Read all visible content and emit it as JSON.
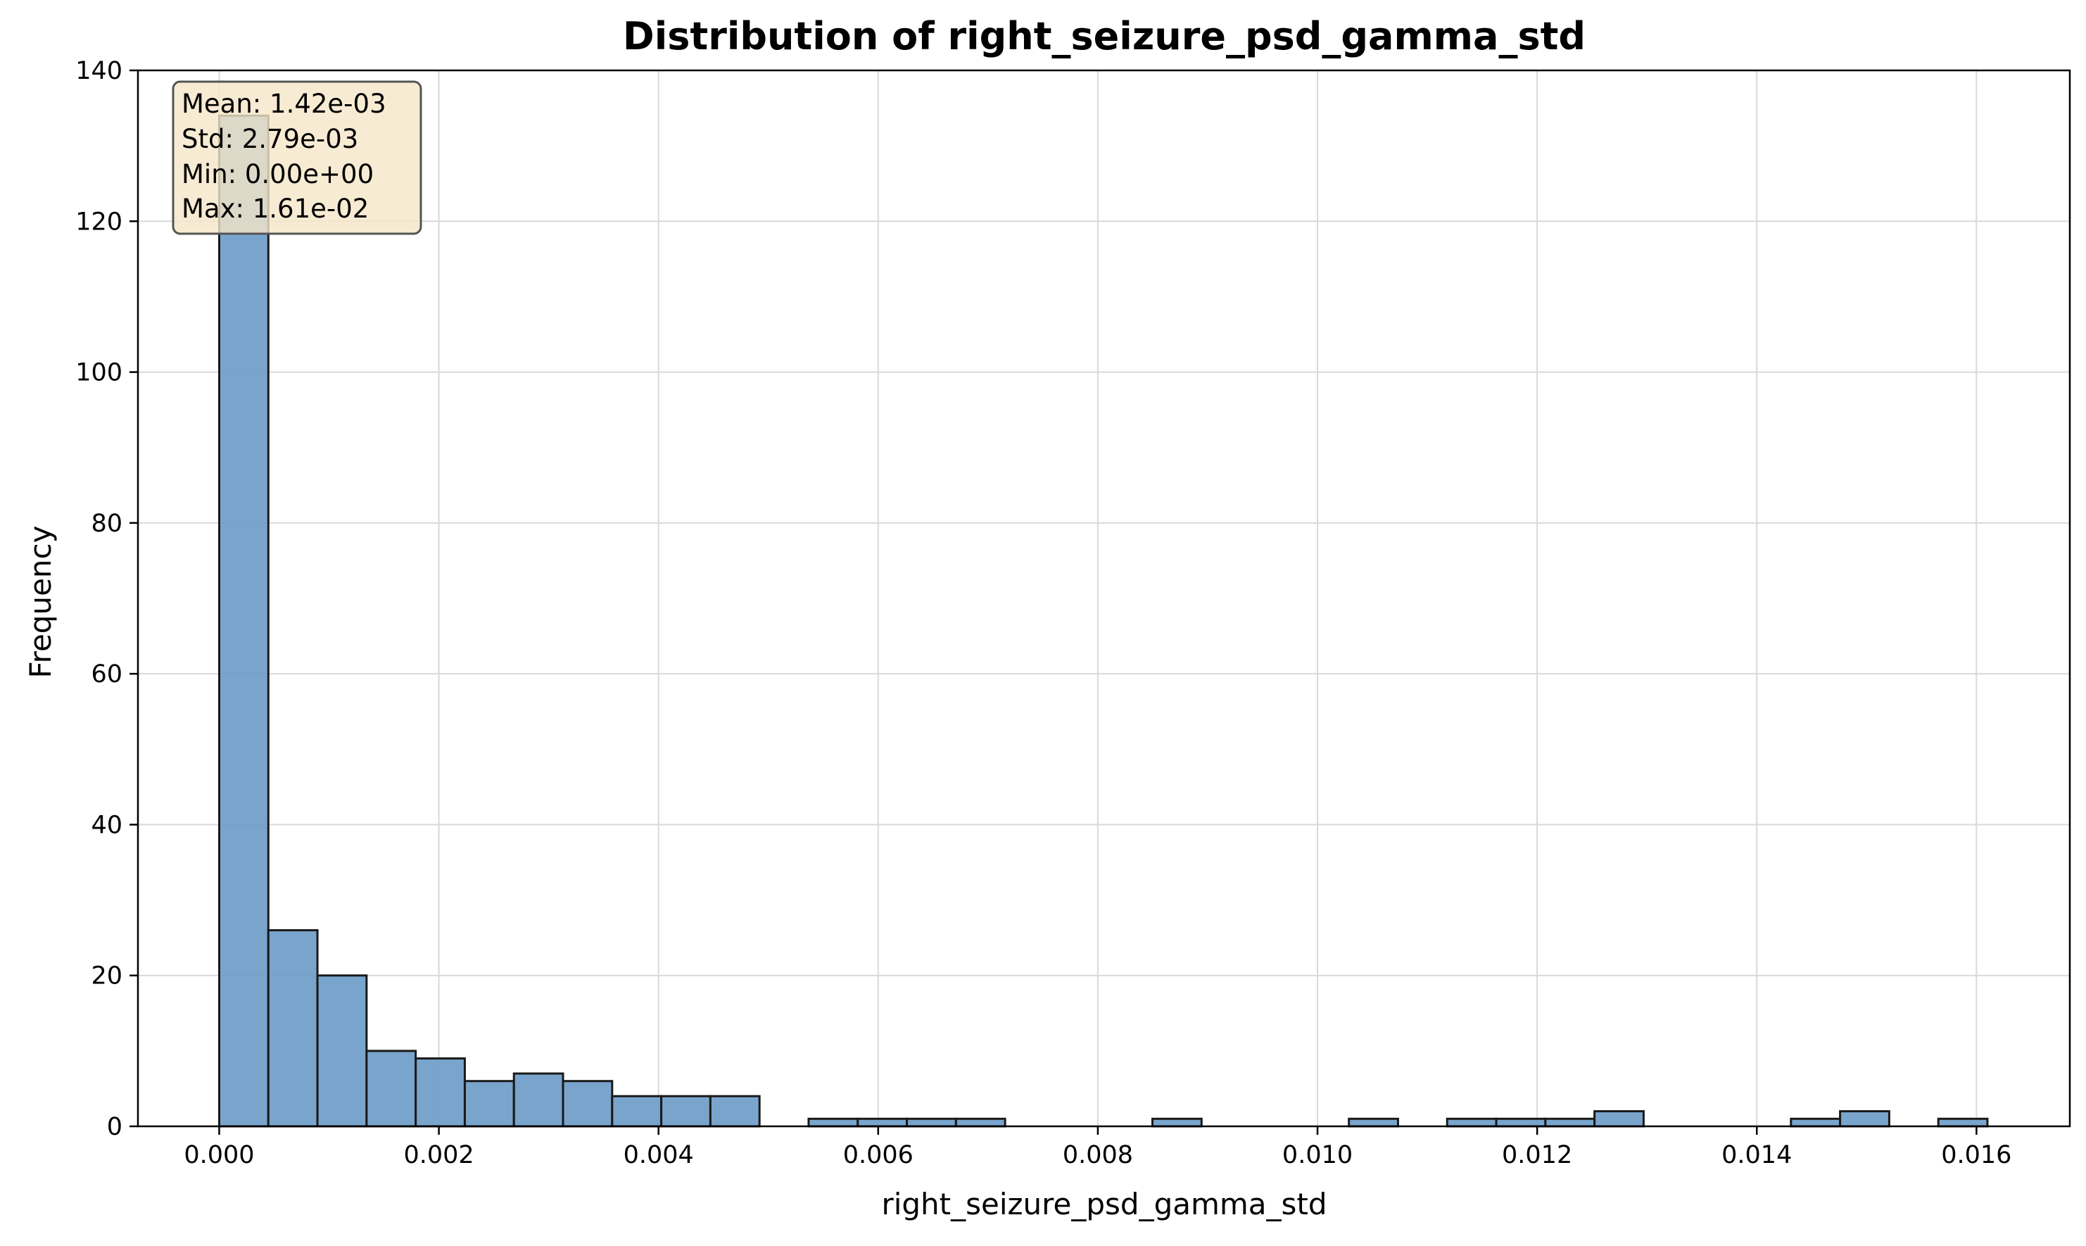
{
  "chart_data": {
    "type": "bar",
    "title": "Distribution of right_seizure_psd_gamma_std",
    "xlabel": "right_seizure_psd_gamma_std",
    "ylabel": "Frequency",
    "xlim": [
      -0.00074,
      0.01685
    ],
    "ylim": [
      0,
      140
    ],
    "x_ticks": [
      "0.000",
      "0.002",
      "0.004",
      "0.006",
      "0.008",
      "0.010",
      "0.012",
      "0.014",
      "0.016"
    ],
    "x_tick_values": [
      0,
      0.002,
      0.004,
      0.006,
      0.008,
      0.01,
      0.012,
      0.014,
      0.016
    ],
    "y_ticks": [
      "0",
      "20",
      "40",
      "60",
      "80",
      "100",
      "120",
      "140"
    ],
    "y_tick_values": [
      0,
      20,
      40,
      60,
      80,
      100,
      120,
      140
    ],
    "grid": true,
    "bin_start": 0,
    "bin_end": 0.0161,
    "bins": 36,
    "counts": [
      134,
      26,
      20,
      10,
      9,
      6,
      7,
      6,
      4,
      4,
      4,
      0,
      1,
      1,
      1,
      1,
      0,
      0,
      0,
      1,
      0,
      0,
      0,
      1,
      0,
      1,
      1,
      1,
      2,
      0,
      0,
      0,
      1,
      2,
      0,
      1
    ],
    "bar_color": "#6a9bc8",
    "edge_color": "#1a1a1a",
    "stats_box": {
      "lines": [
        "Mean: 1.42e-03",
        "Std: 2.79e-03",
        "Min: 0.00e+00",
        "Max: 1.61e-02"
      ],
      "position": "top-left",
      "background": "#f5e6c8"
    }
  }
}
